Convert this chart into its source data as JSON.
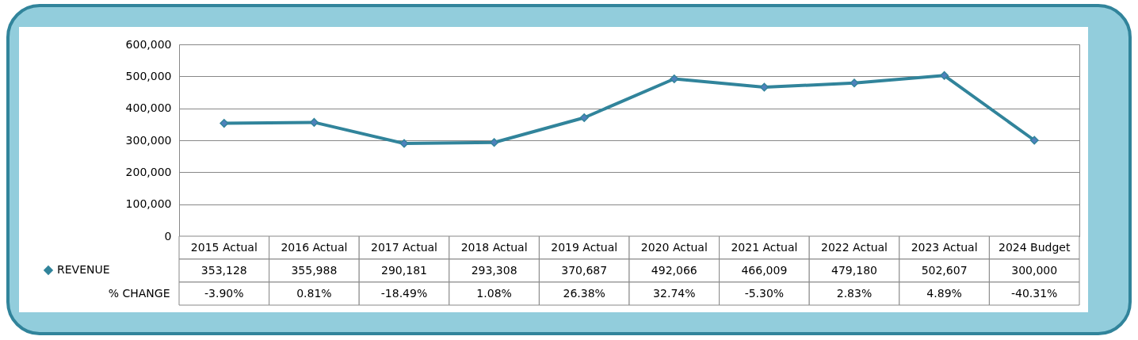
{
  "chart_data": {
    "type": "line",
    "categories": [
      "2015 Actual",
      "2016 Actual",
      "2017 Actual",
      "2018 Actual",
      "2019 Actual",
      "2020 Actual",
      "2021 Actual",
      "2022 Actual",
      "2023 Actual",
      "2024 Budget"
    ],
    "series": [
      {
        "name": "REVENUE",
        "color": "#31849b",
        "values": [
          353128,
          355988,
          290181,
          293308,
          370687,
          492066,
          466009,
          479180,
          502607,
          300000
        ],
        "value_labels": [
          "353,128",
          "355,988",
          "290,181",
          "293,308",
          "370,687",
          "492,066",
          "466,009",
          "479,180",
          "502,607",
          "300,000"
        ]
      }
    ],
    "ylim": [
      0,
      600000
    ],
    "yticks": [
      0,
      {
        "value": 100000,
        "label": "100,000"
      },
      {
        "value": 200000,
        "label": "200,000"
      },
      {
        "value": 300000,
        "label": "300,000"
      },
      {
        "value": 400000,
        "label": "400,000"
      },
      {
        "value": 500000,
        "label": "500,000"
      },
      {
        "value": 600000,
        "label": "600,000"
      }
    ],
    "grid": "y",
    "marker": "diamond",
    "legend": "bottom left",
    "annotations": [
      "% CHANGE",
      "-3.90%",
      "0.81%",
      "-18.49%",
      "1.08%",
      "26.38%",
      "32.74%",
      "-5.30%",
      "2.83%",
      "4.89%",
      "-40.31%"
    ]
  }
}
